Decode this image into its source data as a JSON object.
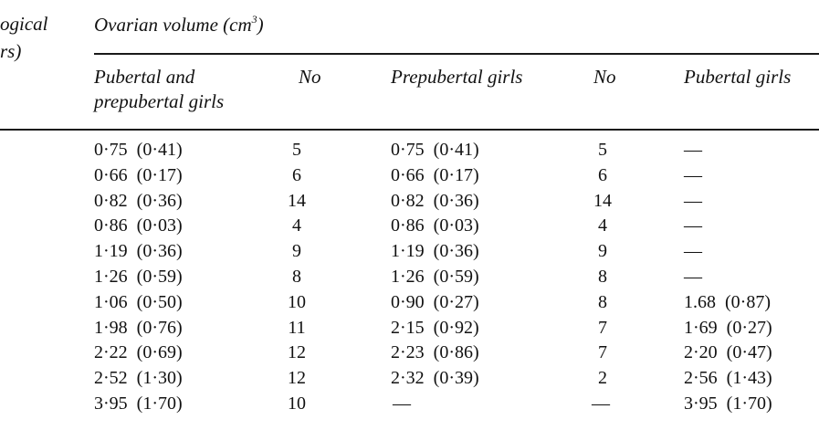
{
  "table": {
    "row_header_fragment": [
      "ogical",
      "rs)"
    ],
    "group_header": "Ovarian volume (cm",
    "group_header_sup": "3",
    "group_header_close": ")",
    "columns": [
      {
        "line1": "Pubertal and",
        "line2": "prepubertal girls"
      },
      {
        "line1": "No"
      },
      {
        "line1": "Prepubertal girls"
      },
      {
        "line1": "No"
      },
      {
        "line1": "Pubertal girls"
      }
    ],
    "rows": [
      [
        "0·75  (0·41)",
        "5",
        "0·75  (0·41)",
        "5",
        "—"
      ],
      [
        "0·66  (0·17)",
        "6",
        "0·66  (0·17)",
        "6",
        "—"
      ],
      [
        "0·82  (0·36)",
        "14",
        "0·82  (0·36)",
        "14",
        "—"
      ],
      [
        "0·86  (0·03)",
        "4",
        "0·86  (0·03)",
        "4",
        "—"
      ],
      [
        "1·19  (0·36)",
        "9",
        "1·19  (0·36)",
        "9",
        "—"
      ],
      [
        "1·26  (0·59)",
        "8",
        "1·26  (0·59)",
        "8",
        "—"
      ],
      [
        "1·06  (0·50)",
        "10",
        "0·90  (0·27)",
        "8",
        "1.68  (0·87)"
      ],
      [
        "1·98  (0·76)",
        "11",
        "2·15  (0·92)",
        "7",
        "1·69  (0·27)"
      ],
      [
        "2·22  (0·69)",
        "12",
        "2·23  (0·86)",
        "7",
        "2·20  (0·47)"
      ],
      [
        "2·52  (1·30)",
        "12",
        "2·32  (0·39)",
        "2",
        "2·56  (1·43)"
      ],
      [
        "3·95  (1·70)",
        "10",
        "—",
        "—",
        "3·95  (1·70)"
      ]
    ]
  }
}
